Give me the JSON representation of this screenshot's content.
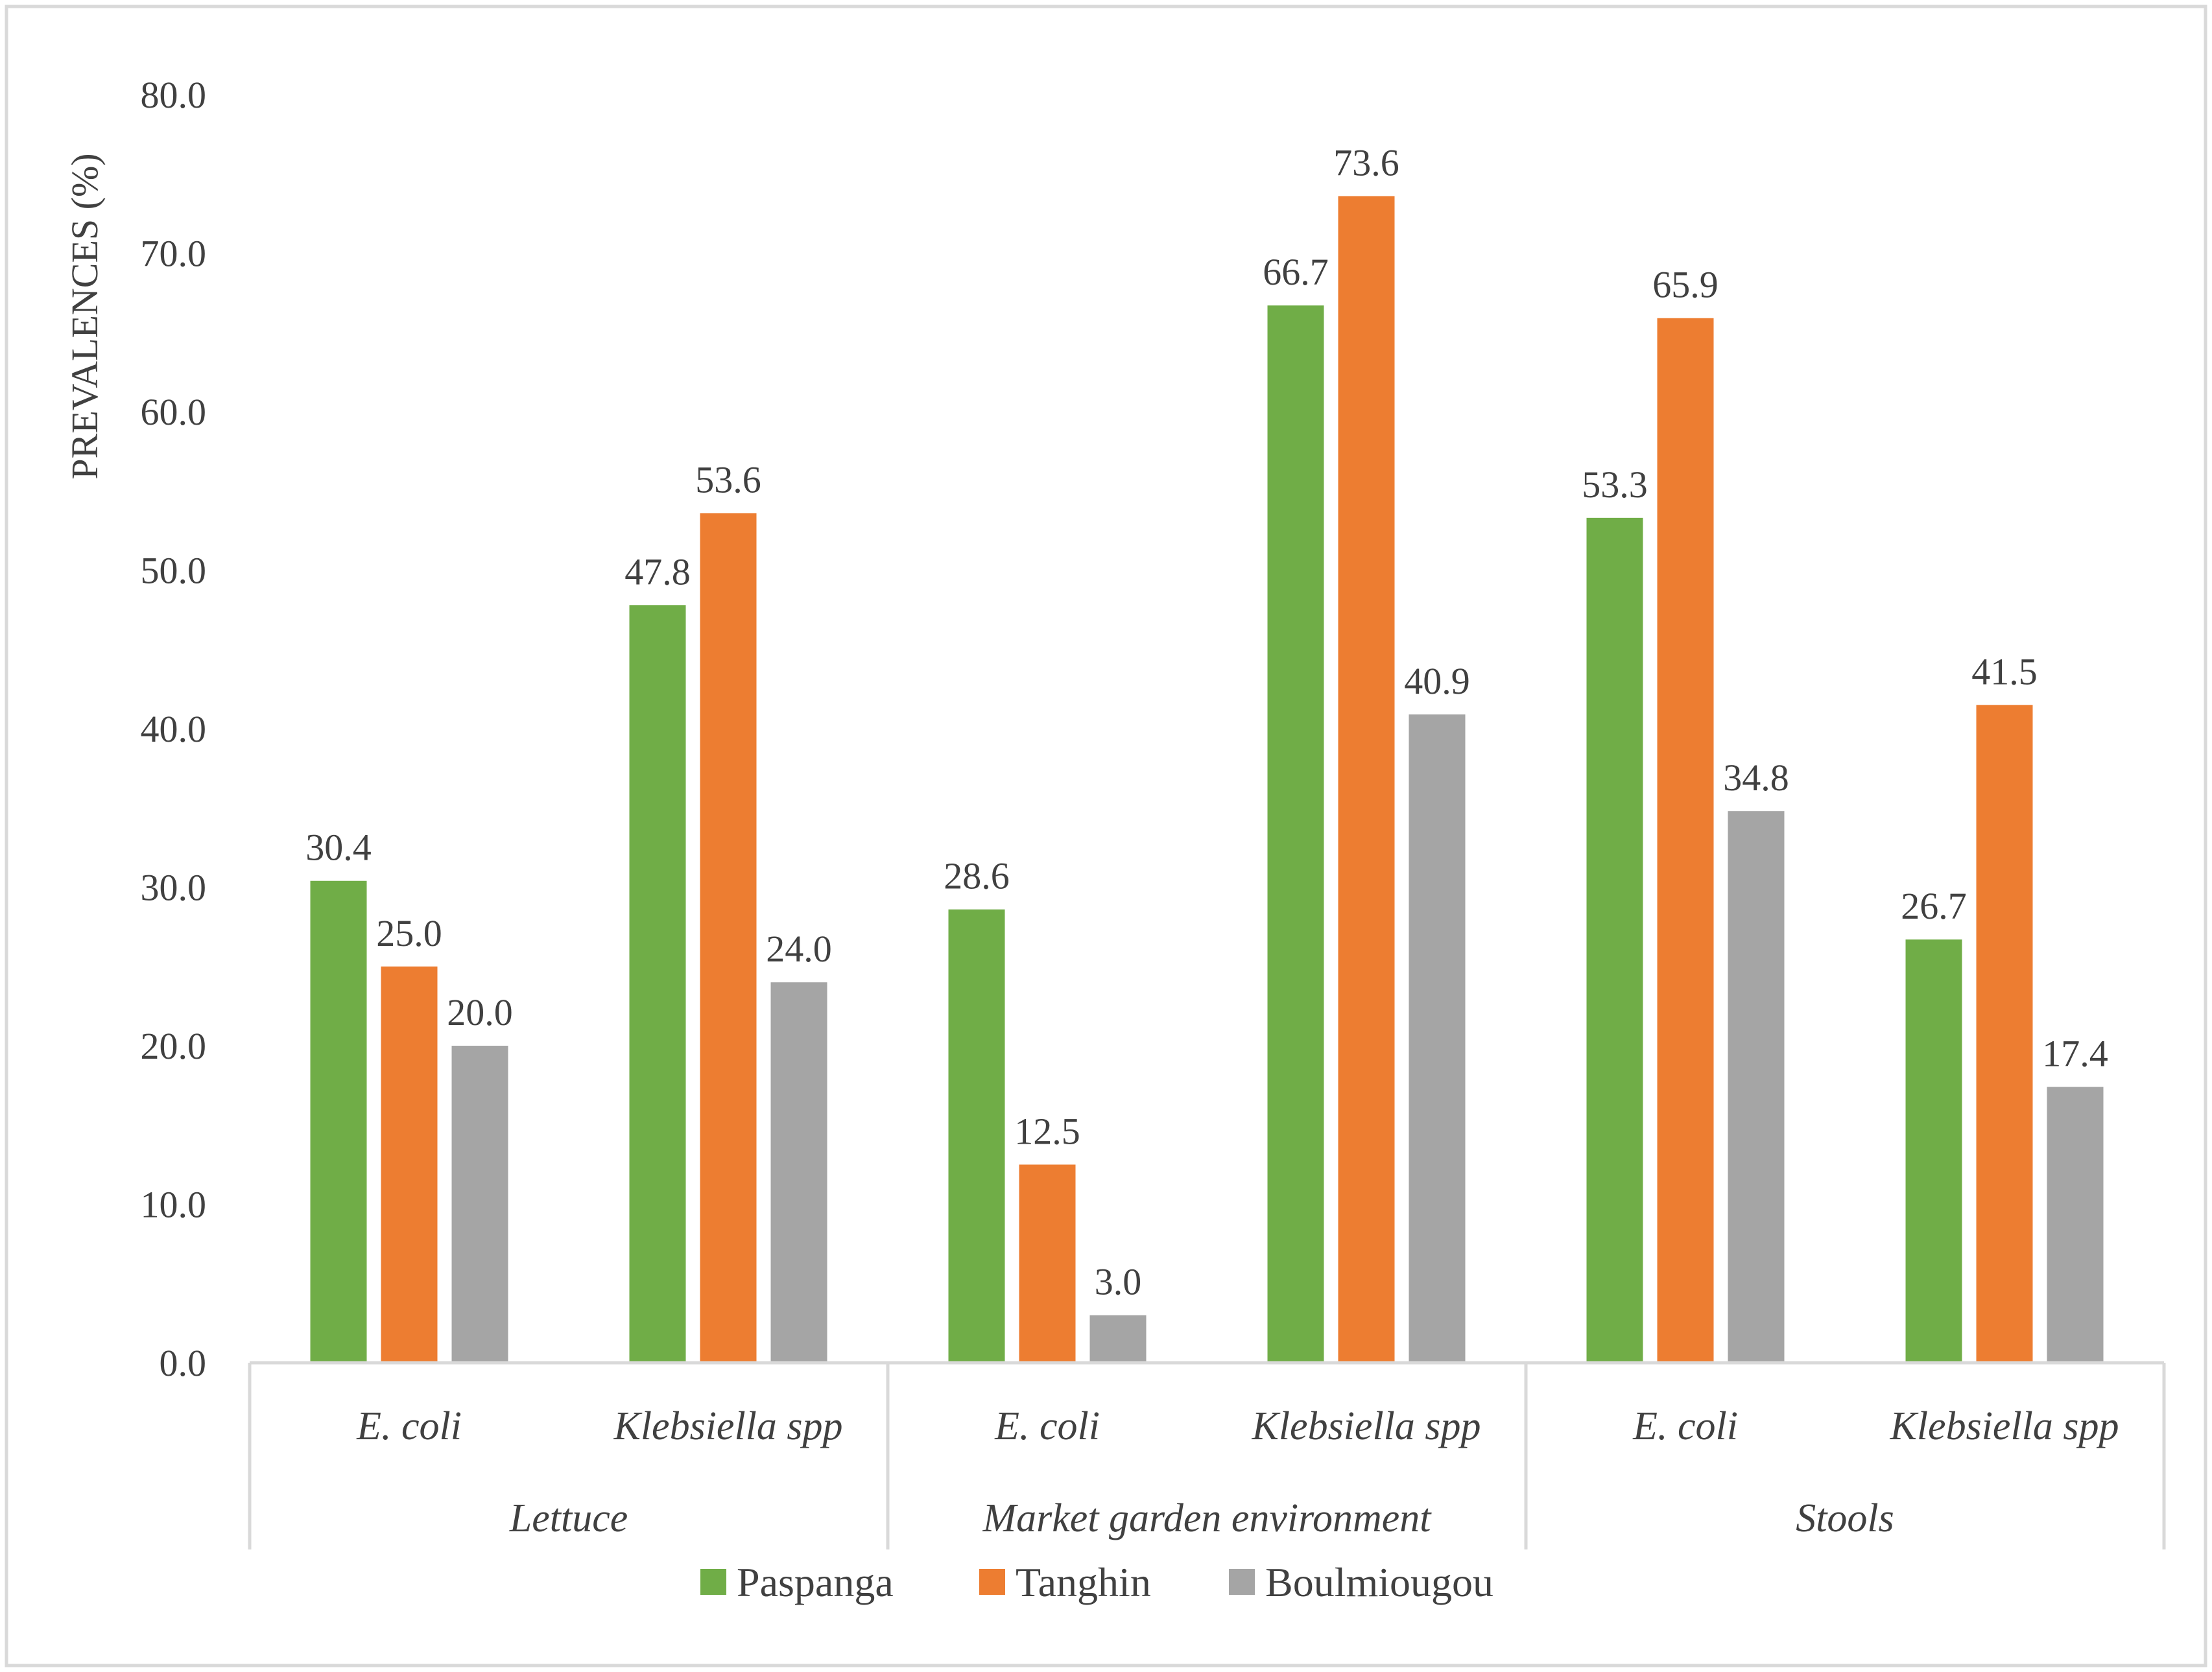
{
  "chart_data": {
    "type": "bar",
    "title": "",
    "xlabel": "",
    "ylabel": "PREVALENCES (%)",
    "ylim": [
      0,
      80
    ],
    "yticks": [
      "0.0",
      "10.0",
      "20.0",
      "30.0",
      "40.0",
      "50.0",
      "60.0",
      "70.0",
      "80.0"
    ],
    "grid": false,
    "legend_position": "bottom",
    "groups": [
      {
        "label": "Lettuce",
        "categories": [
          "E. coli",
          "Klebsiella spp"
        ]
      },
      {
        "label": "Market garden environment",
        "categories": [
          "E. coli",
          "Klebsiella spp"
        ]
      },
      {
        "label": "Stools",
        "categories": [
          "E. coli",
          "Klebsiella spp"
        ]
      }
    ],
    "categories": [
      "E. coli",
      "Klebsiella spp",
      "E. coli",
      "Klebsiella spp",
      "E. coli",
      "Klebsiella spp"
    ],
    "series": [
      {
        "name": "Paspanga",
        "color": "#70ad47",
        "values": [
          30.4,
          47.8,
          28.6,
          66.7,
          53.3,
          26.7
        ],
        "labels": [
          "30.4",
          "47.8",
          "28.6",
          "66.7",
          "53.3",
          "26.7"
        ]
      },
      {
        "name": "Tanghin",
        "color": "#ed7d31",
        "values": [
          25.0,
          53.6,
          12.5,
          73.6,
          65.9,
          41.5
        ],
        "labels": [
          "25.0",
          "53.6",
          "12.5",
          "73.6",
          "65.9",
          "41.5"
        ]
      },
      {
        "name": "Boulmiougou",
        "color": "#a5a5a5",
        "values": [
          20.0,
          24.0,
          3.0,
          40.9,
          34.8,
          17.4
        ],
        "labels": [
          "20.0",
          "24.0",
          "3.0",
          "40.9",
          "34.8",
          "17.4"
        ]
      }
    ]
  }
}
